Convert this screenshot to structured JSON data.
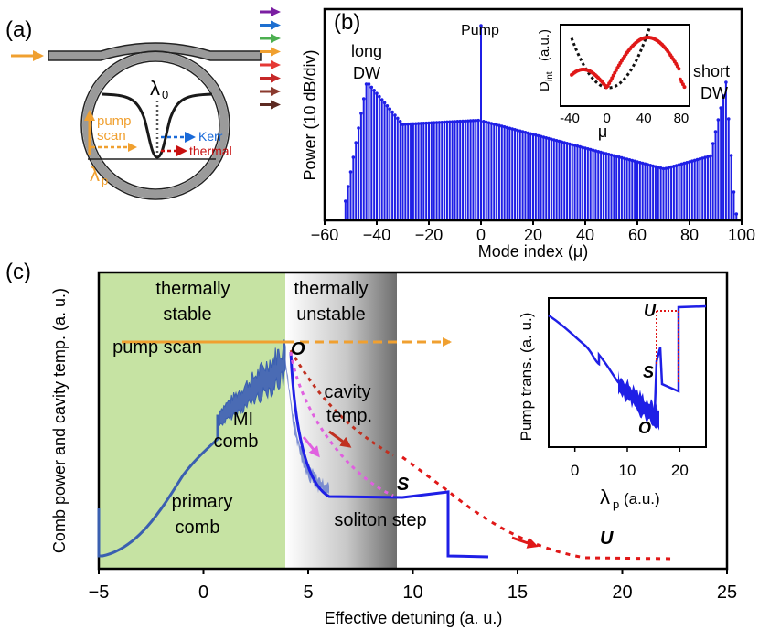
{
  "colors": {
    "blue": "#1f1fe6",
    "comb_blue": "#3a5fb0",
    "orange": "#f0a030",
    "red": "#e01818",
    "dark_red": "#c03020",
    "magenta": "#e060e0",
    "green_bg": "#c6e3a3",
    "gray": "#8c8c8c",
    "black": "#000000",
    "kerr_blue": "#1a6ad8",
    "thermal_red": "#c81010"
  },
  "panel_a": {
    "label": "(a)",
    "lambda0": "λ",
    "lambda0_sub": "0",
    "lambdap": "λ",
    "lambdap_sub": "p",
    "pump_scan_1": "pump",
    "pump_scan_2": "scan",
    "kerr": "Kerr",
    "thermal": "thermal",
    "output_arrow_colors": [
      "#7b1fa2",
      "#1e6fd0",
      "#4caf50",
      "#f0a030",
      "#e53935",
      "#c62828",
      "#8b3a2e",
      "#5d2a22"
    ]
  },
  "panel_b": {
    "label": "(b)",
    "pump": "Pump",
    "long_dw_1": "long",
    "long_dw_2": "DW",
    "short_dw_1": "short",
    "short_dw_2": "DW",
    "inset_ylabel": "D",
    "inset_ylabel_sub": "int",
    "inset_ylabel_unit": "(a.u.)",
    "inset_xlabel": "μ",
    "inset_xticks": [
      "-40",
      "0",
      "40",
      "80"
    ]
  },
  "panel_c": {
    "label": "(c)",
    "thermally_stable_1": "thermally",
    "thermally_stable_2": "stable",
    "thermally_unstable_1": "thermally",
    "thermally_unstable_2": "unstable",
    "pump_scan": "pump scan",
    "mi_comb_1": "MI",
    "mi_comb_2": "comb",
    "primary_comb_1": "primary",
    "primary_comb_2": "comb",
    "cavity_temp_1": "cavity",
    "cavity_temp_2": "temp.",
    "soliton_step": "soliton step",
    "O": "O",
    "S": "S",
    "U": "U",
    "inset_ylabel": "Pump trans. (a. u.)",
    "inset_xlabel": "λ",
    "inset_xlabel_sub": "p",
    "inset_xlabel_unit": "(a.u.)",
    "inset_xticks": [
      "0",
      "10",
      "20"
    ],
    "inset_O": "O",
    "inset_S": "S",
    "inset_U": "U"
  },
  "chart_data": [
    {
      "type": "bar",
      "panel": "b",
      "title": "",
      "xlabel": "Mode index (μ)",
      "ylabel": "Power (10 dB/div)",
      "xlim": [
        -60,
        100
      ],
      "xticks": [
        "−60",
        "−40",
        "−20",
        "0",
        "20",
        "40",
        "60",
        "80",
        "100"
      ],
      "peaks": {
        "long_dw": -43,
        "pump": 0,
        "short_dw": 94
      },
      "inset": {
        "type": "line",
        "xlabel": "μ",
        "ylabel": "D_int (a.u.)",
        "xticks": [
          -40,
          0,
          40,
          80
        ],
        "series": [
          {
            "name": "simulated",
            "style": "red dots"
          },
          {
            "name": "parabolic",
            "style": "black dotted"
          }
        ]
      }
    },
    {
      "type": "line",
      "panel": "c",
      "xlabel": "Effective detuning (a. u.)",
      "ylabel": "Comb power and cavity temp. (a. u.)",
      "xlim": [
        -5,
        25
      ],
      "xticks": [
        "−5",
        "0",
        "5",
        "10",
        "15",
        "20",
        "25"
      ],
      "regions": [
        {
          "name": "thermally stable",
          "from": -5,
          "to": 3.8
        },
        {
          "name": "thermally unstable",
          "from": 3.8,
          "to": 9.2
        }
      ],
      "series": [
        {
          "name": "comb power",
          "style": "blue solid"
        },
        {
          "name": "cavity temperature",
          "style": "red dashed"
        },
        {
          "name": "pump scan",
          "style": "orange arrow"
        }
      ],
      "inset": {
        "type": "line",
        "xlabel": "λp (a.u.)",
        "ylabel": "Pump trans. (a. u.)",
        "xlim": [
          -5,
          25
        ],
        "xticks": [
          0,
          10,
          20
        ]
      }
    }
  ]
}
